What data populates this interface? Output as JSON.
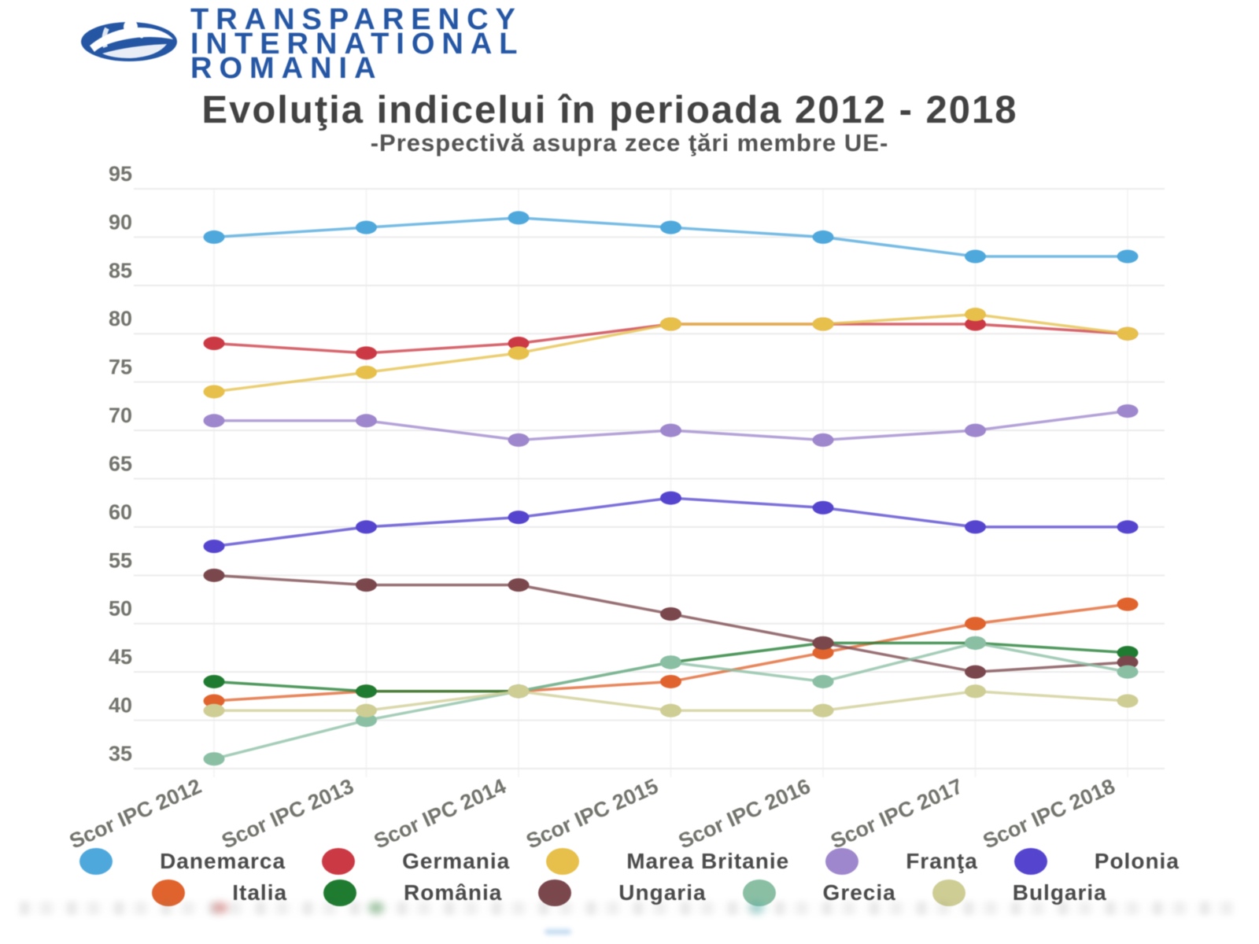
{
  "logo": {
    "line1": "TRANSPARENCY",
    "line2": "INTERNATIONAL",
    "line3": "ROMANIA",
    "brand_blue": "#2456a4"
  },
  "header": {
    "title": "Evoluţia indicelui în perioada 2012 - 2018",
    "subtitle": "-Prespectivă asupra zece ţări membre UE-"
  },
  "chart_data": {
    "type": "line",
    "title": "Evoluţia indicelui în perioada 2012 - 2018",
    "subtitle": "-Prespectivă asupra zece ţări membre UE-",
    "categories": [
      "Scor IPC 2012",
      "Scor IPC 2013",
      "Scor IPC 2014",
      "Scor IPC 2015",
      "Scor IPC 2016",
      "Scor IPC 2017",
      "Scor IPC 2018"
    ],
    "series": [
      {
        "name": "Danemarca",
        "color": "#4FA8DC",
        "values": [
          90,
          91,
          92,
          91,
          90,
          88,
          88
        ]
      },
      {
        "name": "Germania",
        "color": "#CB3A44",
        "values": [
          79,
          78,
          79,
          81,
          81,
          81,
          80
        ]
      },
      {
        "name": "Marea Britanie",
        "color": "#E6C04A",
        "values": [
          74,
          76,
          78,
          81,
          81,
          82,
          80
        ]
      },
      {
        "name": "Franţa",
        "color": "#9E87CC",
        "values": [
          71,
          71,
          69,
          70,
          69,
          70,
          72
        ]
      },
      {
        "name": "Polonia",
        "color": "#5545CE",
        "values": [
          58,
          60,
          61,
          63,
          62,
          60,
          60
        ]
      },
      {
        "name": "Italia",
        "color": "#E0632D",
        "values": [
          42,
          43,
          43,
          44,
          47,
          50,
          52
        ]
      },
      {
        "name": "România",
        "color": "#1E7B30",
        "values": [
          44,
          43,
          43,
          46,
          48,
          48,
          47
        ]
      },
      {
        "name": "Ungaria",
        "color": "#7A474C",
        "values": [
          55,
          54,
          54,
          51,
          48,
          45,
          46
        ]
      },
      {
        "name": "Grecia",
        "color": "#8ABFA4",
        "values": [
          36,
          40,
          43,
          46,
          44,
          48,
          45
        ]
      },
      {
        "name": "Bulgaria",
        "color": "#CECD94",
        "values": [
          41,
          41,
          43,
          41,
          41,
          43,
          42
        ]
      }
    ],
    "yticks": [
      95,
      90,
      85,
      80,
      75,
      70,
      65,
      60,
      55,
      50,
      45,
      40,
      35
    ],
    "ylim": [
      35,
      95
    ],
    "grid": "horizontal major, faint vertical per category",
    "legend_position": "bottom",
    "axis_label_color": "#73736d",
    "grid_color": "#ebebeb"
  }
}
